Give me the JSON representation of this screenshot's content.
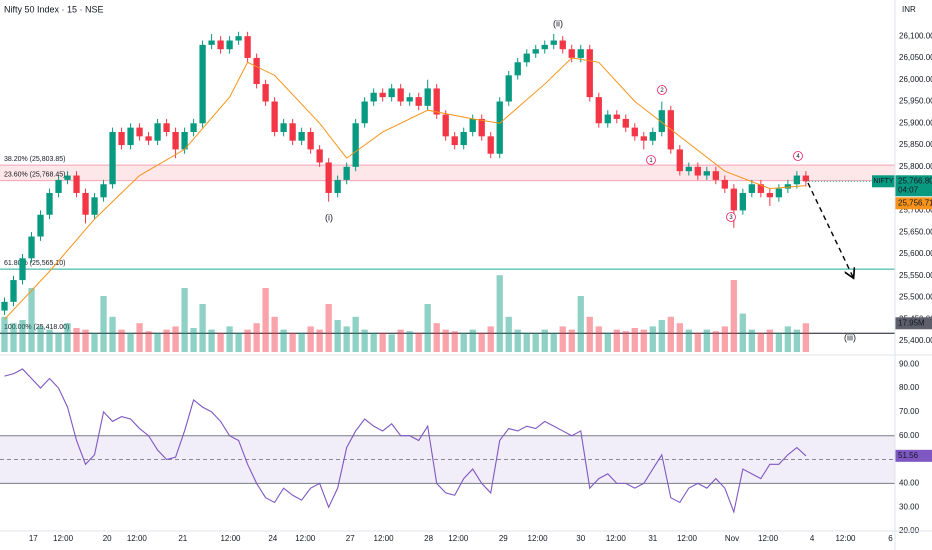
{
  "header": {
    "title": "Nifty 50 Index · 15 · NSE",
    "currency": "INR"
  },
  "chart_data": [
    {
      "type": "candlestick",
      "up_color": "#089981",
      "down_color": "#f23645",
      "xlim": [
        -0.5,
        98.9
      ],
      "xticks": [
        {
          "value": 3.2,
          "label": "17"
        },
        {
          "value": 6.5,
          "label": "12:00"
        },
        {
          "value": 11.4,
          "label": "20"
        },
        {
          "value": 14.7,
          "label": "12:00"
        },
        {
          "value": 19.8,
          "label": "21"
        },
        {
          "value": 25.1,
          "label": "12:00"
        },
        {
          "value": 29.8,
          "label": "24"
        },
        {
          "value": 33.4,
          "label": "12:00"
        },
        {
          "value": 38.4,
          "label": "27"
        },
        {
          "value": 42.1,
          "label": "12:00"
        },
        {
          "value": 47.1,
          "label": "28"
        },
        {
          "value": 50.4,
          "label": "12:00"
        },
        {
          "value": 55.4,
          "label": "29"
        },
        {
          "value": 59.2,
          "label": "12:00"
        },
        {
          "value": 64,
          "label": "30"
        },
        {
          "value": 67.9,
          "label": "12:00"
        },
        {
          "value": 72,
          "label": "31"
        },
        {
          "value": 75.8,
          "label": "12:00"
        },
        {
          "value": 80.8,
          "label": "Nov"
        },
        {
          "value": 84.8,
          "label": "12:00"
        },
        {
          "value": 89.7,
          "label": "4"
        },
        {
          "value": 93.4,
          "label": "12:00"
        },
        {
          "value": 98.4,
          "label": "6"
        }
      ],
      "ylim": [
        25368,
        26183
      ],
      "yticks": [
        {
          "value": 25400,
          "label": "25,400.00"
        },
        {
          "value": 25450,
          "label": "25,450.00"
        },
        {
          "value": 25500,
          "label": "25,500.00"
        },
        {
          "value": 25550,
          "label": "25,550.00"
        },
        {
          "value": 25600,
          "label": "25,600.00"
        },
        {
          "value": 25650,
          "label": "25,650.00"
        },
        {
          "value": 25700,
          "label": "25,700.00"
        },
        {
          "value": 25750,
          "label": "25,750.00"
        },
        {
          "value": 25800,
          "label": "25,800.00"
        },
        {
          "value": 25850,
          "label": "25,850.00"
        },
        {
          "value": 25900,
          "label": "25,900.00"
        },
        {
          "value": 25950,
          "label": "25,950.00"
        },
        {
          "value": 26000,
          "label": "26,000.00"
        },
        {
          "value": 26050,
          "label": "26,050.00"
        },
        {
          "value": 26100,
          "label": "26,100.00"
        }
      ],
      "ohlc": [
        [
          25470,
          25500,
          25460,
          25490
        ],
        [
          25490,
          25550,
          25480,
          25540
        ],
        [
          25540,
          25600,
          25530,
          25590
        ],
        [
          25590,
          25650,
          25580,
          25640
        ],
        [
          25640,
          25700,
          25630,
          25690
        ],
        [
          25690,
          25750,
          25680,
          25740
        ],
        [
          25740,
          25780,
          25730,
          25770
        ],
        [
          25770,
          25790,
          25760,
          25780
        ],
        [
          25780,
          25790,
          25730,
          25740
        ],
        [
          25740,
          25750,
          25670,
          25690
        ],
        [
          25690,
          25740,
          25680,
          25730
        ],
        [
          25730,
          25770,
          25720,
          25760
        ],
        [
          25760,
          25890,
          25750,
          25880
        ],
        [
          25880,
          25890,
          25840,
          25850
        ],
        [
          25850,
          25900,
          25840,
          25890
        ],
        [
          25890,
          25900,
          25860,
          25870
        ],
        [
          25870,
          25880,
          25850,
          25860
        ],
        [
          25860,
          25910,
          25850,
          25900
        ],
        [
          25900,
          25910,
          25870,
          25880
        ],
        [
          25880,
          25890,
          25820,
          25840
        ],
        [
          25840,
          25890,
          25830,
          25880
        ],
        [
          25880,
          25910,
          25870,
          25900
        ],
        [
          25900,
          26090,
          25890,
          26080
        ],
        [
          26080,
          26105,
          26070,
          26090
        ],
        [
          26090,
          26100,
          26060,
          26070
        ],
        [
          26070,
          26100,
          26060,
          26090
        ],
        [
          26090,
          26110,
          26080,
          26100
        ],
        [
          26100,
          26110,
          26040,
          26050
        ],
        [
          26050,
          26060,
          25980,
          25990
        ],
        [
          25990,
          26000,
          25940,
          25950
        ],
        [
          25950,
          25960,
          25870,
          25880
        ],
        [
          25880,
          25910,
          25870,
          25900
        ],
        [
          25900,
          25910,
          25850,
          25860
        ],
        [
          25860,
          25890,
          25850,
          25880
        ],
        [
          25880,
          25890,
          25830,
          25840
        ],
        [
          25840,
          25850,
          25800,
          25810
        ],
        [
          25810,
          25820,
          25720,
          25740
        ],
        [
          25740,
          25780,
          25730,
          25770
        ],
        [
          25770,
          25810,
          25760,
          25800
        ],
        [
          25800,
          25910,
          25790,
          25900
        ],
        [
          25900,
          25960,
          25890,
          25950
        ],
        [
          25950,
          25980,
          25940,
          25970
        ],
        [
          25970,
          25980,
          25950,
          25960
        ],
        [
          25960,
          25990,
          25950,
          25980
        ],
        [
          25980,
          25990,
          25940,
          25950
        ],
        [
          25950,
          25970,
          25940,
          25960
        ],
        [
          25960,
          25970,
          25930,
          25940
        ],
        [
          25940,
          26000,
          25930,
          25980
        ],
        [
          25980,
          25990,
          25910,
          25920
        ],
        [
          25920,
          25930,
          25860,
          25870
        ],
        [
          25870,
          25880,
          25840,
          25850
        ],
        [
          25850,
          25890,
          25840,
          25880
        ],
        [
          25880,
          25920,
          25870,
          25910
        ],
        [
          25910,
          25920,
          25860,
          25870
        ],
        [
          25870,
          25880,
          25820,
          25830
        ],
        [
          25830,
          25960,
          25820,
          25950
        ],
        [
          25950,
          26020,
          25940,
          26010
        ],
        [
          26010,
          26050,
          26000,
          26040
        ],
        [
          26040,
          26070,
          26030,
          26060
        ],
        [
          26060,
          26080,
          26050,
          26070
        ],
        [
          26070,
          26090,
          26060,
          26080
        ],
        [
          26080,
          26105,
          26070,
          26090
        ],
        [
          26090,
          26100,
          26060,
          26070
        ],
        [
          26070,
          26080,
          26040,
          26050
        ],
        [
          26050,
          26080,
          26040,
          26070
        ],
        [
          26070,
          26080,
          25950,
          25960
        ],
        [
          25960,
          25970,
          25890,
          25900
        ],
        [
          25900,
          25930,
          25890,
          25920
        ],
        [
          25920,
          25930,
          25900,
          25910
        ],
        [
          25910,
          25920,
          25880,
          25890
        ],
        [
          25890,
          25900,
          25860,
          25870
        ],
        [
          25870,
          25880,
          25840,
          25860
        ],
        [
          25860,
          25890,
          25850,
          25880
        ],
        [
          25880,
          25950,
          25870,
          25930
        ],
        [
          25930,
          25940,
          25830,
          25840
        ],
        [
          25840,
          25850,
          25780,
          25790
        ],
        [
          25790,
          25810,
          25780,
          25800
        ],
        [
          25800,
          25810,
          25770,
          25780
        ],
        [
          25780,
          25800,
          25770,
          25790
        ],
        [
          25790,
          25800,
          25760,
          25770
        ],
        [
          25770,
          25780,
          25740,
          25750
        ],
        [
          25750,
          25760,
          25660,
          25700
        ],
        [
          25700,
          25750,
          25690,
          25740
        ],
        [
          25740,
          25770,
          25730,
          25760
        ],
        [
          25760,
          25770,
          25730,
          25740
        ],
        [
          25740,
          25750,
          25710,
          25730
        ],
        [
          25730,
          25760,
          25720,
          25750
        ],
        [
          25750,
          25770,
          25740,
          25760
        ],
        [
          25760,
          25790,
          25750,
          25780
        ],
        [
          25780,
          25790,
          25755,
          25766.8
        ]
      ],
      "last_price": {
        "symbol": "NIFTY",
        "value": 25766.8,
        "label": "25,766.80",
        "countdown": "04:07"
      },
      "volume": {
        "ylim": [
          0,
          220
        ],
        "last_label": "17.95M",
        "values": [
          22,
          18,
          20,
          40,
          16,
          14,
          12,
          18,
          15,
          14,
          12,
          35,
          22,
          14,
          12,
          18,
          13,
          12,
          14,
          16,
          40,
          15,
          30,
          14,
          12,
          16,
          12,
          14,
          18,
          40,
          22,
          14,
          12,
          12,
          16,
          14,
          30,
          20,
          16,
          22,
          14,
          12,
          12,
          11,
          14,
          13,
          12,
          30,
          18,
          14,
          13,
          12,
          14,
          12,
          16,
          48,
          22,
          14,
          12,
          12,
          14,
          12,
          16,
          14,
          35,
          22,
          16,
          12,
          14,
          13,
          15,
          14,
          16,
          20,
          22,
          18,
          14,
          12,
          14,
          13,
          16,
          45,
          24,
          14,
          12,
          14,
          12,
          16,
          14,
          17.95
        ]
      },
      "ma": {
        "color": "#f7931a",
        "last_label": "25,756.71",
        "x": [
          0,
          5,
          10,
          15,
          20,
          25,
          27,
          30,
          35,
          38,
          42,
          47,
          52,
          55,
          60,
          63,
          66,
          70,
          75,
          80,
          85,
          89
        ],
        "values": [
          25450,
          25560,
          25680,
          25780,
          25840,
          25960,
          26040,
          26010,
          25900,
          25820,
          25880,
          25930,
          25910,
          25900,
          25990,
          26050,
          26040,
          25950,
          25870,
          25790,
          25750,
          25756.71
        ]
      },
      "fib_levels": [
        {
          "value": 25803.85,
          "label": "38.20% (25,803.85)",
          "color": "#f7a1b5"
        },
        {
          "value": 25768.45,
          "label": "23.60% (25,768.45)",
          "color": "#f7a1b5"
        },
        {
          "value": 25565.1,
          "label": "61.80% (25,565.10)",
          "color": "#22ab94"
        },
        {
          "value": 25418,
          "label": "100.00% (25,418.00)",
          "color": "#131722"
        }
      ],
      "fib_fill": "rgba(242,54,69,0.12)",
      "wave_labels": [
        "(i)",
        "(ii)",
        "(iii)"
      ],
      "minor_labels": [
        "1",
        "2",
        "3",
        "4"
      ]
    },
    {
      "type": "line",
      "name": "RSI",
      "color": "#7e57c2",
      "ylim": [
        19.6,
        92.6
      ],
      "yticks": [
        {
          "value": 20,
          "label": "20.00"
        },
        {
          "value": 30,
          "label": "30.00"
        },
        {
          "value": 40,
          "label": "40.00"
        },
        {
          "value": 50,
          "label": "50.00"
        },
        {
          "value": 60,
          "label": "60.00"
        },
        {
          "value": 70,
          "label": "70.00"
        },
        {
          "value": 80,
          "label": "80.00"
        },
        {
          "value": 90,
          "label": "90.00"
        }
      ],
      "band": [
        40,
        60
      ],
      "midline": 50,
      "last_label": "51.56",
      "values": [
        85,
        86,
        88,
        84,
        80,
        84,
        80,
        72,
        58,
        48,
        52,
        70,
        66,
        68,
        67,
        63,
        60,
        54,
        50,
        51,
        62,
        75,
        72,
        70,
        66,
        60,
        58,
        48,
        40,
        34,
        32,
        38,
        35,
        33,
        38,
        40,
        30,
        38,
        55,
        62,
        67,
        64,
        62,
        65,
        60,
        60,
        58,
        64,
        40,
        36,
        35,
        42,
        46,
        40,
        36,
        58,
        63,
        62,
        64,
        63,
        66,
        64,
        62,
        60,
        62,
        38,
        42,
        44,
        40,
        40,
        38,
        40,
        46,
        52,
        34,
        32,
        38,
        40,
        38,
        42,
        38,
        28,
        46,
        44,
        42,
        48,
        48,
        52,
        55,
        51.56
      ]
    }
  ]
}
